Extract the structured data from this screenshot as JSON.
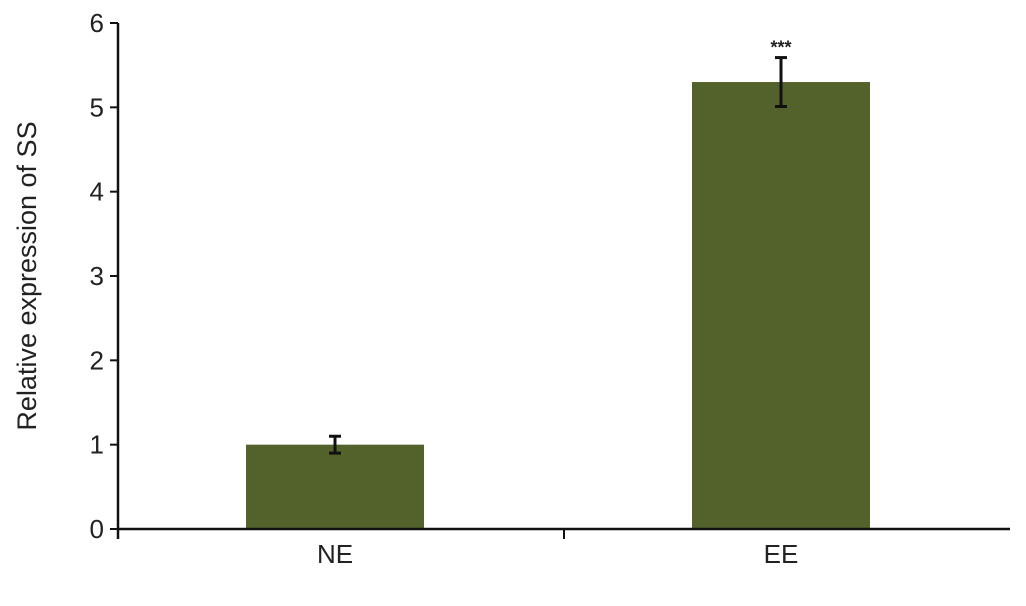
{
  "chart_data": {
    "type": "bar",
    "categories": [
      "NE",
      "EE"
    ],
    "values": [
      1.0,
      5.3
    ],
    "errors": [
      0.1,
      0.29
    ],
    "annotations": [
      "",
      "***"
    ],
    "title": "",
    "xlabel": "",
    "ylabel": "Relative expression of SS",
    "ylim": [
      0,
      6
    ],
    "yticks": [
      "0",
      "1",
      "2",
      "3",
      "4",
      "5",
      "6"
    ],
    "grid": false,
    "bar_color": "#53622b"
  }
}
